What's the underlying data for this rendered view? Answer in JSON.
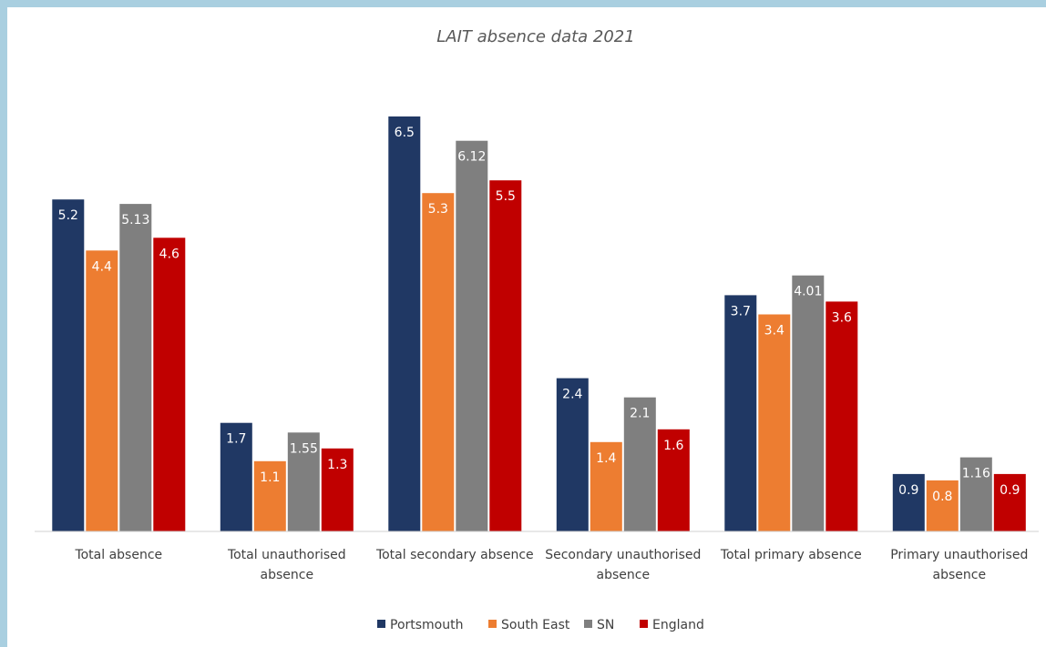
{
  "chart_data": {
    "type": "bar",
    "title": "LAIT absence data 2021",
    "categories": [
      "Total absence",
      "Total unauthorised absence",
      "Total secondary absence",
      "Secondary unauthorised absence",
      "Total primary absence",
      "Primary unauthorised absence"
    ],
    "category_lines": [
      [
        "Total absence"
      ],
      [
        "Total unauthorised",
        "absence"
      ],
      [
        "Total secondary absence"
      ],
      [
        "Secondary unauthorised",
        "absence"
      ],
      [
        "Total primary absence"
      ],
      [
        "Primary unauthorised",
        "absence"
      ]
    ],
    "series": [
      {
        "name": "Portsmouth",
        "color": "#203864",
        "values": [
          5.2,
          1.7,
          6.5,
          2.4,
          3.7,
          0.9
        ],
        "labels": [
          "5.2",
          "1.7",
          "6.5",
          "2.4",
          "3.7",
          "0.9"
        ]
      },
      {
        "name": "South East",
        "color": "#ed7d31",
        "values": [
          4.4,
          1.1,
          5.3,
          1.4,
          3.4,
          0.8
        ],
        "labels": [
          "4.4",
          "1.1",
          "5.3",
          "1.4",
          "3.4",
          "0.8"
        ]
      },
      {
        "name": "SN",
        "color": "#7f7f7f",
        "values": [
          5.13,
          1.55,
          6.12,
          2.1,
          4.01,
          1.16
        ],
        "labels": [
          "5.13",
          "1.55",
          "6.12",
          "2.1",
          "4.01",
          "1.16"
        ]
      },
      {
        "name": "England",
        "color": "#c00000",
        "values": [
          4.6,
          1.3,
          5.5,
          1.6,
          3.6,
          0.9
        ],
        "labels": [
          "4.6",
          "1.3",
          "5.5",
          "1.6",
          "3.6",
          "0.9"
        ]
      }
    ],
    "ylim": [
      0,
      7
    ],
    "xlabel": "",
    "ylabel": "",
    "grid": false,
    "y_axis_visible": false,
    "legend": "bottom-center"
  }
}
